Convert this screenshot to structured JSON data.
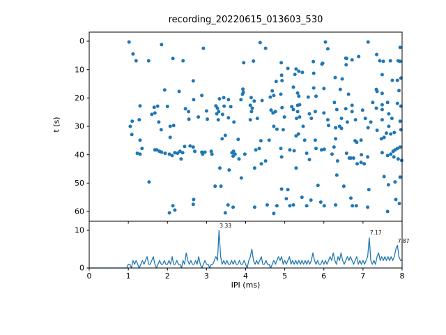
{
  "figure": {
    "title": "recording_20220615_013603_530",
    "background": "#ffffff",
    "accent_color": "#1f77b4"
  },
  "chart_data": [
    {
      "type": "scatter",
      "title": "recording_20220615_013603_530",
      "xlabel": "",
      "ylabel": "t (s)",
      "xlim": [
        0,
        8
      ],
      "ylim": [
        63,
        -3
      ],
      "y_axis_inverted": true,
      "x_ticks": [
        0,
        1,
        2,
        3,
        4,
        5,
        6,
        7,
        8
      ],
      "x_tick_labels_visible": false,
      "y_ticks": [
        0,
        10,
        20,
        30,
        40,
        50,
        60
      ],
      "marker_color": "#1f77b4",
      "grid": false,
      "legend": "none",
      "points": [
        [
          1.02,
          0.3
        ],
        [
          1.85,
          1.2
        ],
        [
          1.12,
          4.5
        ],
        [
          1.2,
          6.9
        ],
        [
          1.52,
          6.9
        ],
        [
          2.14,
          6.1
        ],
        [
          2.4,
          6.9
        ],
        [
          2.66,
          14.0
        ],
        [
          1.93,
          17.2
        ],
        [
          2.3,
          17.7
        ],
        [
          1.3,
          22.8
        ],
        [
          1.66,
          23.3
        ],
        [
          1.75,
          22.9
        ],
        [
          1.68,
          25.3
        ],
        [
          1.6,
          25.8
        ],
        [
          2.0,
          23.0
        ],
        [
          2.46,
          23.8
        ],
        [
          2.54,
          24.8
        ],
        [
          1.1,
          28.2
        ],
        [
          1.28,
          27.7
        ],
        [
          1.78,
          28.5
        ],
        [
          2.55,
          27.5
        ],
        [
          2.92,
          2.5
        ],
        [
          4.37,
          0.5
        ],
        [
          4.51,
          2.5
        ],
        [
          3.95,
          7.6
        ],
        [
          4.2,
          7.0
        ],
        [
          4.91,
          7.6
        ],
        [
          5.08,
          9.6
        ],
        [
          5.29,
          9.8
        ],
        [
          5.26,
          11.7
        ],
        [
          4.92,
          12.0
        ],
        [
          4.78,
          14.2
        ],
        [
          4.93,
          13.9
        ],
        [
          3.93,
          16.9
        ],
        [
          3.94,
          18.0
        ],
        [
          3.92,
          18.7
        ],
        [
          4.68,
          17.5
        ],
        [
          4.72,
          19.1
        ],
        [
          4.63,
          19.7
        ],
        [
          4.9,
          18.7
        ],
        [
          5.22,
          16.2
        ],
        [
          5.33,
          18.3
        ],
        [
          2.88,
          19.1
        ],
        [
          2.67,
          20.6
        ],
        [
          3.33,
          20.3
        ],
        [
          3.44,
          19.9
        ],
        [
          3.56,
          20.6
        ],
        [
          3.88,
          20.6
        ],
        [
          4.14,
          19.9
        ],
        [
          4.22,
          21.1
        ],
        [
          3.24,
          22.8
        ],
        [
          3.28,
          23.6
        ],
        [
          3.31,
          24.8
        ],
        [
          3.26,
          25.6
        ],
        [
          3.41,
          25.8
        ],
        [
          3.45,
          22.9
        ],
        [
          3.62,
          23.1
        ],
        [
          4.12,
          22.6
        ],
        [
          4.17,
          23.6
        ],
        [
          4.15,
          24.8
        ],
        [
          4.42,
          20.9
        ],
        [
          3.0,
          24.6
        ],
        [
          2.79,
          26.7
        ],
        [
          3.02,
          27.5
        ],
        [
          3.3,
          27.7
        ],
        [
          3.56,
          27.0
        ],
        [
          3.7,
          28.5
        ],
        [
          4.12,
          27.7
        ],
        [
          4.3,
          27.2
        ],
        [
          4.65,
          24.3
        ],
        [
          4.7,
          25.3
        ],
        [
          4.76,
          24.8
        ],
        [
          5.18,
          23.1
        ],
        [
          5.22,
          24.1
        ],
        [
          5.33,
          22.6
        ],
        [
          5.33,
          24.8
        ],
        [
          4.93,
          23.4
        ],
        [
          4.99,
          26.7
        ],
        [
          5.3,
          27.2
        ],
        [
          6.04,
          0.3
        ],
        [
          7.13,
          0.3
        ],
        [
          6.1,
          2.7
        ],
        [
          7.95,
          2.2
        ],
        [
          5.73,
          7.2
        ],
        [
          5.97,
          7.8
        ],
        [
          6.56,
          6.0
        ],
        [
          6.58,
          6.1
        ],
        [
          6.72,
          6.6
        ],
        [
          6.89,
          5.4
        ],
        [
          6.57,
          8.3
        ],
        [
          7.35,
          4.7
        ],
        [
          7.43,
          6.9
        ],
        [
          7.52,
          7.1
        ],
        [
          7.7,
          6.9
        ],
        [
          7.9,
          6.9
        ],
        [
          7.95,
          7.1
        ],
        [
          5.95,
          8.1
        ],
        [
          5.36,
          10.6
        ],
        [
          5.45,
          11.0
        ],
        [
          5.74,
          11.3
        ],
        [
          6.29,
          12.8
        ],
        [
          6.47,
          13.3
        ],
        [
          7.49,
          11.8
        ],
        [
          7.75,
          13.8
        ],
        [
          7.88,
          13.8
        ],
        [
          7.97,
          13.0
        ],
        [
          5.74,
          16.5
        ],
        [
          6.0,
          16.7
        ],
        [
          6.42,
          17.0
        ],
        [
          7.34,
          17.0
        ],
        [
          7.36,
          17.7
        ],
        [
          7.49,
          18.4
        ],
        [
          7.92,
          17.4
        ],
        [
          5.36,
          19.4
        ],
        [
          5.6,
          19.7
        ],
        [
          5.8,
          19.4
        ],
        [
          6.63,
          18.7
        ],
        [
          5.38,
          22.4
        ],
        [
          6.27,
          21.6
        ],
        [
          6.72,
          22.6
        ],
        [
          7.25,
          21.6
        ],
        [
          7.49,
          22.4
        ],
        [
          7.63,
          21.6
        ],
        [
          7.88,
          21.9
        ],
        [
          7.97,
          22.9
        ],
        [
          6.33,
          24.1
        ],
        [
          6.56,
          23.8
        ],
        [
          6.72,
          24.8
        ],
        [
          6.99,
          24.3
        ],
        [
          7.34,
          23.6
        ],
        [
          7.49,
          24.1
        ],
        [
          7.66,
          25.6
        ],
        [
          6.0,
          25.3
        ],
        [
          5.78,
          24.8
        ],
        [
          5.63,
          25.6
        ],
        [
          5.38,
          26.7
        ],
        [
          5.68,
          27.2
        ],
        [
          6.1,
          27.7
        ],
        [
          6.45,
          27.2
        ],
        [
          6.6,
          28.5
        ],
        [
          6.81,
          27.7
        ],
        [
          7.06,
          27.2
        ],
        [
          7.2,
          28.5
        ],
        [
          7.49,
          27.7
        ],
        [
          7.74,
          27.2
        ],
        [
          7.95,
          28.2
        ],
        [
          1.05,
          30.0
        ],
        [
          2.07,
          30.0
        ],
        [
          2.16,
          29.7
        ],
        [
          1.84,
          31.2
        ],
        [
          1.09,
          32.9
        ],
        [
          2.07,
          33.9
        ],
        [
          1.3,
          34.9
        ],
        [
          1.35,
          37.8
        ],
        [
          1.23,
          39.5
        ],
        [
          1.3,
          39.8
        ],
        [
          1.68,
          38.3
        ],
        [
          1.73,
          38.3
        ],
        [
          1.8,
          38.8
        ],
        [
          1.85,
          39.1
        ],
        [
          1.94,
          39.5
        ],
        [
          2.05,
          39.8
        ],
        [
          2.12,
          40.3
        ],
        [
          2.19,
          39.3
        ],
        [
          2.26,
          39.5
        ],
        [
          2.32,
          38.8
        ],
        [
          2.39,
          39.3
        ],
        [
          2.44,
          37.1
        ],
        [
          2.58,
          36.9
        ],
        [
          2.66,
          37.3
        ],
        [
          2.35,
          41.5
        ],
        [
          1.53,
          49.6
        ],
        [
          2.66,
          57.5
        ],
        [
          2.14,
          58.0
        ],
        [
          2.19,
          59.5
        ],
        [
          2.05,
          60.5
        ],
        [
          4.72,
          30.0
        ],
        [
          4.8,
          31.0
        ],
        [
          4.96,
          31.2
        ],
        [
          3.48,
          33.2
        ],
        [
          3.4,
          34.4
        ],
        [
          3.81,
          34.6
        ],
        [
          5.29,
          33.4
        ],
        [
          4.39,
          35.1
        ],
        [
          4.6,
          34.9
        ],
        [
          4.26,
          38.3
        ],
        [
          4.35,
          37.8
        ],
        [
          2.7,
          38.8
        ],
        [
          2.88,
          39.1
        ],
        [
          2.96,
          39.1
        ],
        [
          2.9,
          39.8
        ],
        [
          3.12,
          38.8
        ],
        [
          3.14,
          39.8
        ],
        [
          3.65,
          39.3
        ],
        [
          3.69,
          38.8
        ],
        [
          3.73,
          39.8
        ],
        [
          3.68,
          40.5
        ],
        [
          3.83,
          41.5
        ],
        [
          3.98,
          39.8
        ],
        [
          4.9,
          37.8
        ],
        [
          5.13,
          38.3
        ],
        [
          5.24,
          38.6
        ],
        [
          4.92,
          40.8
        ],
        [
          4.51,
          42.2
        ],
        [
          4.4,
          43.2
        ],
        [
          3.34,
          44.7
        ],
        [
          3.58,
          45.4
        ],
        [
          4.23,
          44.7
        ],
        [
          5.29,
          44.7
        ],
        [
          3.89,
          48.2
        ],
        [
          3.22,
          51.1
        ],
        [
          3.37,
          51.1
        ],
        [
          4.92,
          52.1
        ],
        [
          5.08,
          52.3
        ],
        [
          5.04,
          55.5
        ],
        [
          2.67,
          55.8
        ],
        [
          3.55,
          57.7
        ],
        [
          3.68,
          58.5
        ],
        [
          3.48,
          60.5
        ],
        [
          4.23,
          58.5
        ],
        [
          4.55,
          57.7
        ],
        [
          4.72,
          60.7
        ],
        [
          4.8,
          58.0
        ],
        [
          5.13,
          58.0
        ],
        [
          5.22,
          57.7
        ],
        [
          5.47,
          30.0
        ],
        [
          6.12,
          29.7
        ],
        [
          6.3,
          30.5
        ],
        [
          6.4,
          30.0
        ],
        [
          6.45,
          30.7
        ],
        [
          7.13,
          30.5
        ],
        [
          7.36,
          31.4
        ],
        [
          7.66,
          30.0
        ],
        [
          7.6,
          32.4
        ],
        [
          7.47,
          34.4
        ],
        [
          7.54,
          33.9
        ],
        [
          7.71,
          32.7
        ],
        [
          7.8,
          32.2
        ],
        [
          7.97,
          31.2
        ],
        [
          5.35,
          32.7
        ],
        [
          5.51,
          34.9
        ],
        [
          5.78,
          34.9
        ],
        [
          6.3,
          34.4
        ],
        [
          6.8,
          35.1
        ],
        [
          6.84,
          35.6
        ],
        [
          6.95,
          34.9
        ],
        [
          5.8,
          37.8
        ],
        [
          5.94,
          38.3
        ],
        [
          6.01,
          38.1
        ],
        [
          6.26,
          37.3
        ],
        [
          5.56,
          39.5
        ],
        [
          5.63,
          41.7
        ],
        [
          6.21,
          39.8
        ],
        [
          6.35,
          42.2
        ],
        [
          6.58,
          39.5
        ],
        [
          6.65,
          41.2
        ],
        [
          6.69,
          41.2
        ],
        [
          6.76,
          41.2
        ],
        [
          6.96,
          40.0
        ],
        [
          7.12,
          40.8
        ],
        [
          7.49,
          39.3
        ],
        [
          7.63,
          40.3
        ],
        [
          7.71,
          39.8
        ],
        [
          7.77,
          38.8
        ],
        [
          7.82,
          38.3
        ],
        [
          7.88,
          37.8
        ],
        [
          7.95,
          37.3
        ],
        [
          7.79,
          40.8
        ],
        [
          7.9,
          41.5
        ],
        [
          7.99,
          42.0
        ],
        [
          6.85,
          43.2
        ],
        [
          6.95,
          42.7
        ],
        [
          7.03,
          43.2
        ],
        [
          6.33,
          47.2
        ],
        [
          7.54,
          47.7
        ],
        [
          7.95,
          47.9
        ],
        [
          7.82,
          49.6
        ],
        [
          5.85,
          50.8
        ],
        [
          6.51,
          51.1
        ],
        [
          7.15,
          52.3
        ],
        [
          7.65,
          50.6
        ],
        [
          5.44,
          55.0
        ],
        [
          5.67,
          56.0
        ],
        [
          5.92,
          56.7
        ],
        [
          5.56,
          58.0
        ],
        [
          6.01,
          58.0
        ],
        [
          6.3,
          57.7
        ],
        [
          6.69,
          55.3
        ],
        [
          6.73,
          58.0
        ],
        [
          6.83,
          58.0
        ],
        [
          7.12,
          58.5
        ],
        [
          7.63,
          60.0
        ],
        [
          7.84,
          55.8
        ],
        [
          7.93,
          57.2
        ]
      ]
    },
    {
      "type": "line",
      "xlabel": "IPI (ms)",
      "ylabel": "",
      "xlim": [
        0,
        8
      ],
      "ylim": [
        0,
        12.4
      ],
      "x_ticks": [
        0,
        1,
        2,
        3,
        4,
        5,
        6,
        7,
        8
      ],
      "y_ticks": [
        0,
        10
      ],
      "line_color": "#1f77b4",
      "grid": false,
      "legend": "none",
      "x_start": 0,
      "x_step": 0.04,
      "values": [
        0,
        0,
        0,
        0,
        0,
        0,
        0,
        0,
        0,
        0,
        0,
        0,
        0,
        0,
        0,
        0,
        0,
        0,
        0,
        0,
        0,
        0,
        0,
        0,
        0,
        1,
        1,
        0,
        2,
        1,
        2,
        1,
        0,
        1,
        2,
        1,
        2,
        3,
        1,
        1,
        2,
        3,
        1,
        0,
        1,
        2,
        1,
        1,
        2,
        1,
        1,
        2,
        1,
        3,
        1,
        1,
        2,
        1,
        1,
        0,
        2,
        1,
        4,
        2,
        1,
        2,
        1,
        1,
        2,
        1,
        3,
        1,
        0,
        1,
        2,
        1,
        1,
        0,
        1,
        1,
        2,
        3,
        2,
        10,
        3,
        1,
        2,
        1,
        2,
        1,
        1,
        2,
        1,
        2,
        1,
        1,
        2,
        1,
        1,
        2,
        1,
        0,
        2,
        3,
        5,
        2,
        1,
        2,
        1,
        2,
        3,
        1,
        1,
        2,
        1,
        1,
        0,
        1,
        2,
        1,
        2,
        3,
        2,
        3,
        1,
        2,
        1,
        2,
        3,
        1,
        2,
        1,
        2,
        1,
        2,
        1,
        2,
        1,
        2,
        1,
        2,
        1,
        2,
        4,
        2,
        1,
        2,
        1,
        1,
        2,
        1,
        2,
        1,
        2,
        3,
        2,
        4,
        2,
        1,
        3,
        2,
        4,
        2,
        1,
        2,
        3,
        2,
        3,
        2,
        1,
        2,
        3,
        1,
        2,
        1,
        2,
        1,
        2,
        3,
        8,
        2,
        1,
        2,
        1,
        3,
        4,
        2,
        3,
        2,
        3,
        2,
        3,
        2,
        3,
        2,
        3,
        5,
        6,
        3,
        2,
        2
      ],
      "annotations": [
        {
          "text": "3.33",
          "x": 3.32,
          "y": 10.7
        },
        {
          "text": "7.17",
          "x": 7.16,
          "y": 8.9
        },
        {
          "text": "7.87",
          "x": 7.87,
          "y": 6.7
        }
      ]
    }
  ]
}
